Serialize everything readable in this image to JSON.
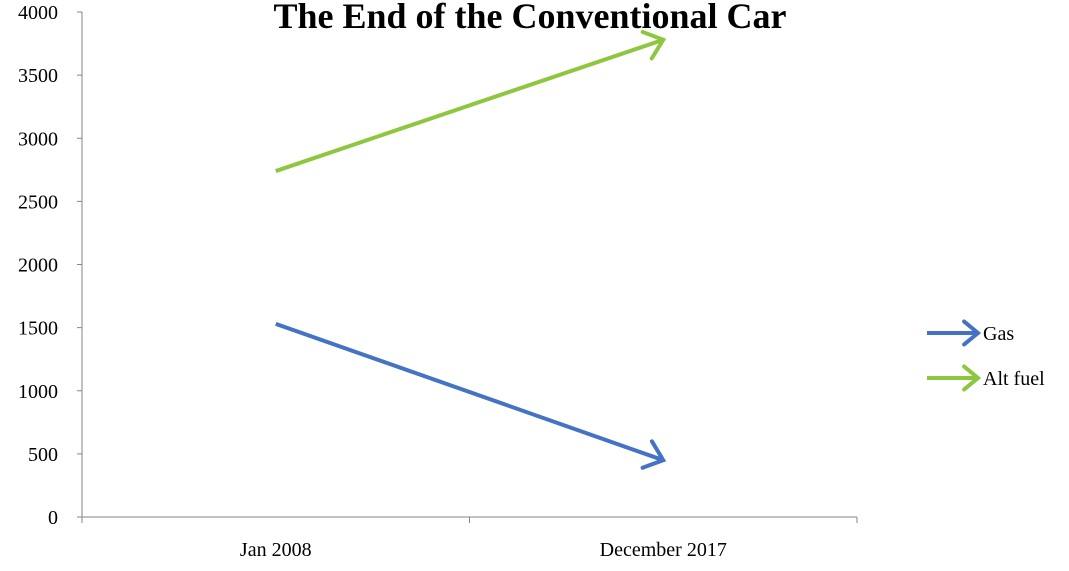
{
  "chart_data": {
    "type": "line",
    "title": "The End of the Conventional Car",
    "xlabel": "",
    "ylabel": "",
    "categories": [
      "Jan 2008",
      "December 2017"
    ],
    "ylim": [
      0,
      4000
    ],
    "yticks": [
      0,
      500,
      1000,
      1500,
      2000,
      2500,
      3000,
      3500,
      4000
    ],
    "grid": false,
    "legend_position": "right",
    "series": [
      {
        "name": "Gas",
        "values": [
          1530,
          450
        ],
        "color": "#4472C4",
        "marker": "arrow"
      },
      {
        "name": "Alt fuel",
        "values": [
          2740,
          3780
        ],
        "color": "#8DC63F",
        "marker": "arrow"
      }
    ]
  }
}
